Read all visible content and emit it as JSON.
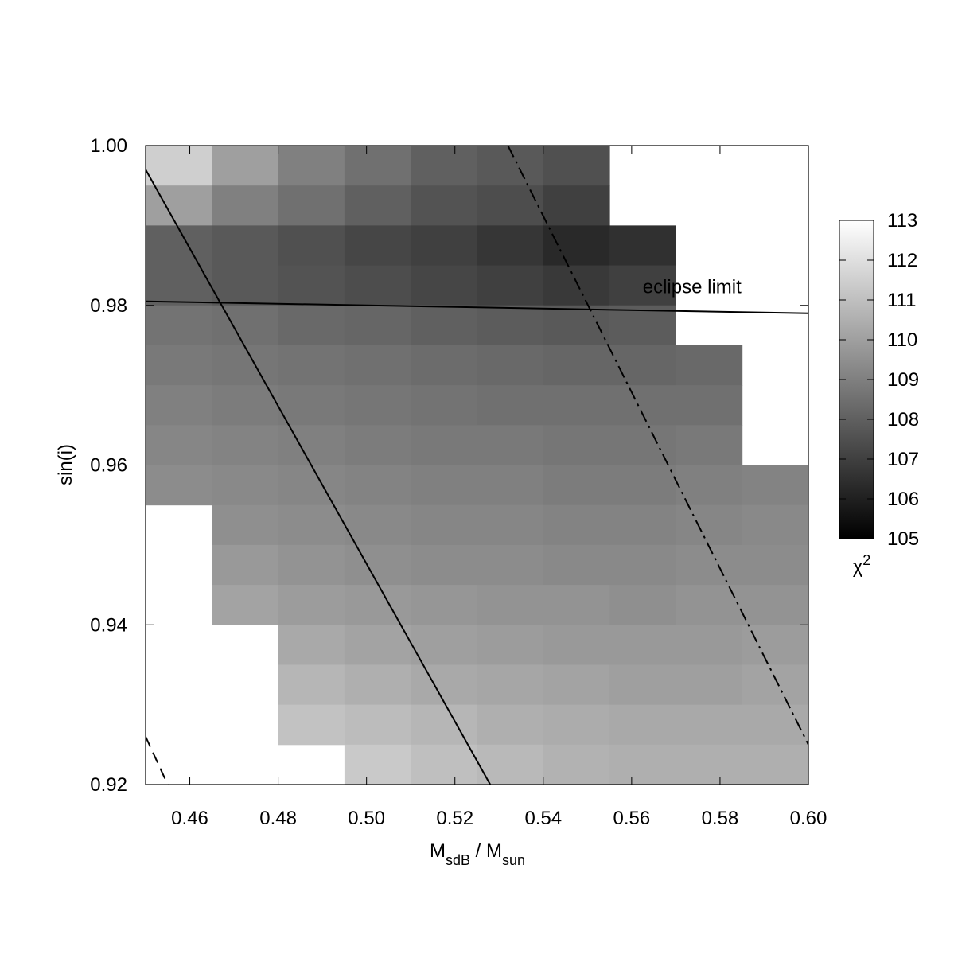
{
  "chart_data": {
    "type": "heatmap",
    "xlabel": [
      "M",
      "sdB",
      " / M",
      "sun"
    ],
    "ylabel": "sin(i)",
    "x": [
      0.4575,
      0.4725,
      0.4875,
      0.5025,
      0.5175,
      0.5325,
      0.5475,
      0.5625,
      0.5775,
      0.5925
    ],
    "y": [
      0.9975,
      0.9925,
      0.9875,
      0.9825,
      0.9775,
      0.9725,
      0.9675,
      0.9625,
      0.9575,
      0.9525,
      0.9475,
      0.9425,
      0.9375,
      0.9325,
      0.9275,
      0.9225
    ],
    "z": [
      [
        111.5,
        110,
        109,
        108.5,
        108,
        107.8,
        107.5,
        null,
        null,
        null
      ],
      [
        110,
        109,
        108.5,
        108,
        107.6,
        107.4,
        107,
        null,
        null,
        null
      ],
      [
        108,
        107.8,
        107.5,
        107.2,
        107,
        106.7,
        106.3,
        106.5,
        null,
        null
      ],
      [
        108,
        107.8,
        107.6,
        107.4,
        107.2,
        107,
        106.8,
        107,
        null,
        null
      ],
      [
        108.6,
        108.5,
        108.3,
        108.2,
        108,
        107.9,
        107.8,
        107.9,
        null,
        null
      ],
      [
        108.8,
        108.7,
        108.6,
        108.5,
        108.4,
        108.3,
        108.2,
        108.2,
        108.3,
        null
      ],
      [
        109,
        108.9,
        108.8,
        108.7,
        108.6,
        108.5,
        108.5,
        108.5,
        108.5,
        null
      ],
      [
        109.2,
        109.1,
        109,
        108.9,
        108.8,
        108.8,
        108.7,
        108.7,
        108.8,
        null
      ],
      [
        109.4,
        109.3,
        109.2,
        109.1,
        109,
        109,
        108.9,
        108.9,
        109,
        109.1
      ],
      [
        null,
        109.5,
        109.4,
        109.3,
        109.2,
        109.2,
        109.1,
        109.1,
        109.2,
        109.3
      ],
      [
        null,
        109.8,
        109.6,
        109.5,
        109.4,
        109.4,
        109.3,
        109.3,
        109.4,
        109.4
      ],
      [
        null,
        110.1,
        109.9,
        109.8,
        109.7,
        109.6,
        109.6,
        109.5,
        109.6,
        109.6
      ],
      [
        null,
        null,
        110.3,
        110.1,
        110,
        109.9,
        109.8,
        109.8,
        109.8,
        109.9
      ],
      [
        null,
        null,
        110.7,
        110.5,
        110.3,
        110.2,
        110.1,
        110,
        110,
        110.1
      ],
      [
        null,
        null,
        111.1,
        110.9,
        110.7,
        110.5,
        110.4,
        110.3,
        110.3,
        110.3
      ],
      [
        null,
        null,
        null,
        111.3,
        111,
        110.8,
        110.6,
        110.5,
        110.5,
        110.5
      ]
    ],
    "lines": [
      {
        "style": "solid",
        "x": [
          0.45,
          0.528
        ],
        "y": [
          0.997,
          0.92
        ]
      },
      {
        "style": "dashdot",
        "x": [
          0.532,
          0.6
        ],
        "y": [
          1.0,
          0.925
        ]
      },
      {
        "style": "dashed",
        "x": [
          0.45,
          0.455
        ],
        "y": [
          0.926,
          0.92
        ]
      },
      {
        "style": "solid",
        "x": [
          0.45,
          0.6
        ],
        "y": [
          0.9805,
          0.979
        ]
      }
    ],
    "annotation": {
      "text": "eclipse limit",
      "x": 0.5625,
      "y": 0.9815
    },
    "xlim": [
      0.45,
      0.6
    ],
    "ylim": [
      0.92,
      1.0
    ],
    "xticks": [
      {
        "value": 0.46,
        "label": "0.46"
      },
      {
        "value": 0.48,
        "label": "0.48"
      },
      {
        "value": 0.5,
        "label": "0.50"
      },
      {
        "value": 0.52,
        "label": "0.52"
      },
      {
        "value": 0.54,
        "label": "0.54"
      },
      {
        "value": 0.56,
        "label": "0.56"
      },
      {
        "value": 0.58,
        "label": "0.58"
      },
      {
        "value": 0.6,
        "label": "0.60"
      }
    ],
    "yticks": [
      {
        "value": 0.92,
        "label": "0.92"
      },
      {
        "value": 0.94,
        "label": "0.94"
      },
      {
        "value": 0.96,
        "label": "0.96"
      },
      {
        "value": 0.98,
        "label": "0.98"
      },
      {
        "value": 1,
        "label": "1.00"
      }
    ],
    "colorbar": {
      "label": [
        "χ",
        "2"
      ],
      "lim": [
        105,
        113
      ],
      "ticks": [
        105,
        106,
        107,
        108,
        109,
        110,
        111,
        112,
        113
      ]
    }
  }
}
